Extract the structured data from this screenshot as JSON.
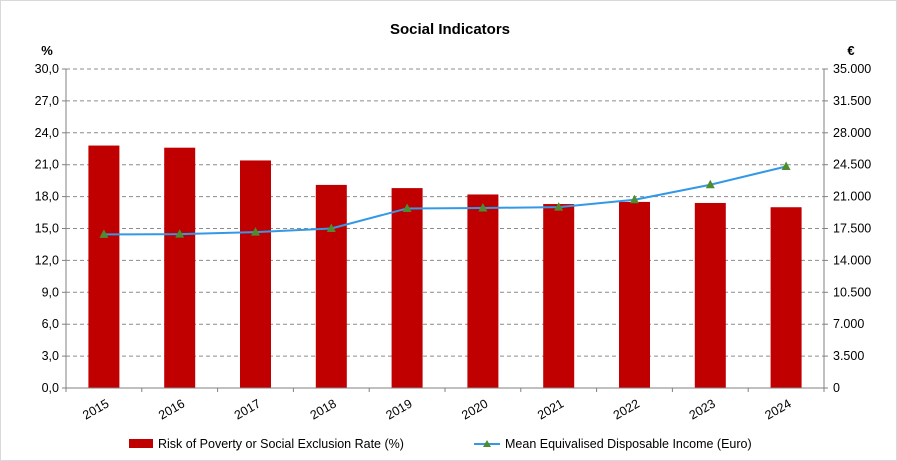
{
  "chart_data": {
    "type": "bar+line",
    "title": "Social Indicators",
    "categories": [
      "2015",
      "2016",
      "2017",
      "2018",
      "2019",
      "2020",
      "2021",
      "2022",
      "2023",
      "2024"
    ],
    "y_left": {
      "unit_label": "%",
      "lim": [
        0,
        30
      ],
      "ticks": [
        "0,0",
        "3,0",
        "6,0",
        "9,0",
        "12,0",
        "15,0",
        "18,0",
        "21,0",
        "24,0",
        "27,0",
        "30,0"
      ]
    },
    "y_right": {
      "unit_label": "€",
      "lim": [
        0,
        35000
      ],
      "ticks": [
        "0",
        "3.500",
        "7.000",
        "10.500",
        "14.000",
        "17.500",
        "21.000",
        "24.500",
        "28.000",
        "31.500",
        "35.000"
      ]
    },
    "grid": true,
    "legend_position": "bottom",
    "series": [
      {
        "name": "Risk of Poverty or Social Exclusion Rate (%)",
        "kind": "bar",
        "axis": "left",
        "color": "#c00000",
        "values": [
          22.8,
          22.6,
          21.4,
          19.1,
          18.8,
          18.2,
          17.3,
          17.5,
          17.4,
          17.0
        ]
      },
      {
        "name": "Mean Equivalised Disposable Income (Euro)",
        "kind": "line",
        "axis": "right",
        "color": "#3399e6",
        "marker_color": "#4e8c2f",
        "values": [
          16850,
          16880,
          17100,
          17500,
          19700,
          19750,
          19850,
          20650,
          22300,
          24300
        ]
      }
    ]
  }
}
